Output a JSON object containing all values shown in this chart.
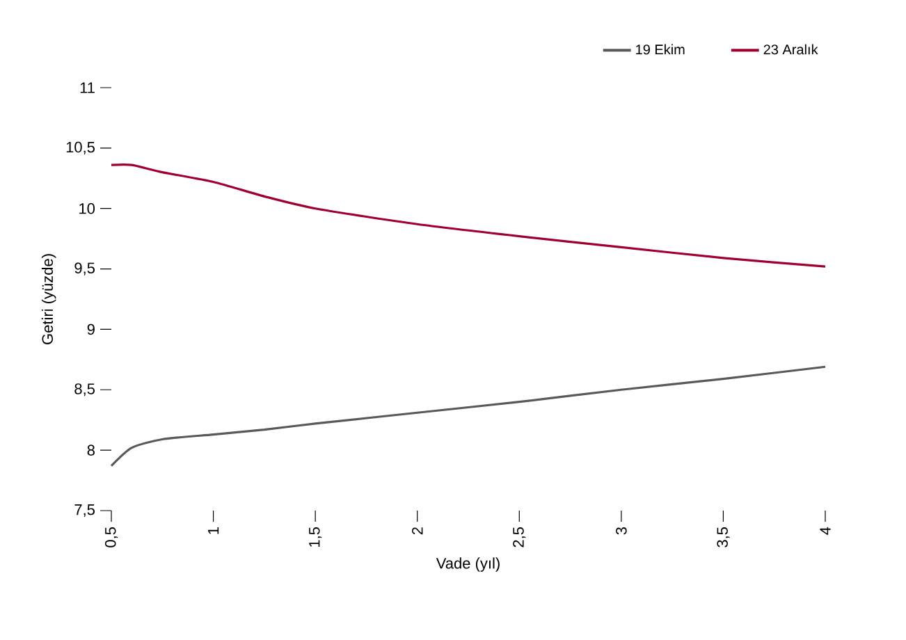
{
  "chart_data": {
    "type": "line",
    "xlabel": "Vade (yıl)",
    "ylabel": "Getiri (yüzde)",
    "x": [
      0.5,
      0.6,
      0.75,
      1,
      1.25,
      1.5,
      2,
      2.5,
      3,
      3.5,
      4
    ],
    "series": [
      {
        "name": "19 Ekim",
        "color": "#58595b",
        "values": [
          7.87,
          8.02,
          8.09,
          8.13,
          8.17,
          8.22,
          8.31,
          8.4,
          8.5,
          8.59,
          8.69
        ]
      },
      {
        "name": "23 Aralık",
        "color": "#a0002f",
        "values": [
          10.36,
          10.36,
          10.3,
          10.22,
          10.1,
          10.0,
          9.87,
          9.77,
          9.68,
          9.59,
          9.52
        ]
      }
    ],
    "xlim": [
      0.5,
      4
    ],
    "ylim": [
      7.5,
      11
    ],
    "xticks": [
      {
        "value": 0.5,
        "label": "0,5"
      },
      1,
      {
        "value": 1.5,
        "label": "1,5"
      },
      2,
      {
        "value": 2.5,
        "label": "2,5"
      },
      3,
      {
        "value": 3.5,
        "label": "3,5"
      },
      4
    ],
    "yticks": [
      {
        "value": 7.5,
        "label": "7,5"
      },
      8,
      {
        "value": 8.5,
        "label": "8,5"
      },
      9,
      {
        "value": 9.5,
        "label": "9,5"
      },
      10,
      {
        "value": 10.5,
        "label": "10,5"
      },
      11
    ],
    "legend": "top right"
  }
}
